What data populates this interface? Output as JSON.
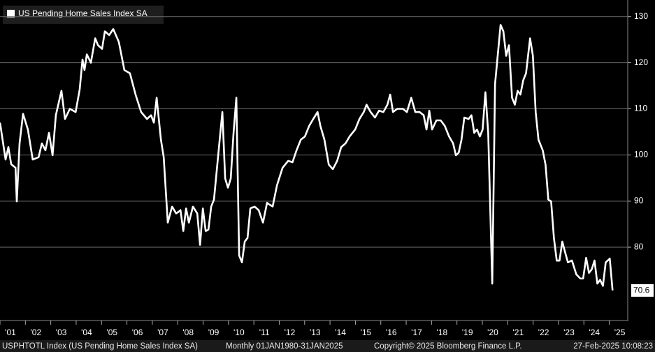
{
  "chart_data": {
    "type": "line",
    "source": "USPHTOTL Index (US Pending Home Sales Index SA)",
    "frequency": "Monthly 01JAN1980-31JAN2025",
    "copyright": "Copyright© 2025 Bloomberg Finance L.P.",
    "timestamp": "27-Feb-2025 10:08:23",
    "x": [
      2001.0,
      2001.22,
      2001.33,
      2001.44,
      2001.61,
      2001.66,
      2001.77,
      2001.91,
      2002.1,
      2002.29,
      2002.52,
      2002.65,
      2002.79,
      2002.93,
      2003.07,
      2003.2,
      2003.42,
      2003.56,
      2003.75,
      2003.98,
      2004.14,
      2004.25,
      2004.33,
      2004.42,
      2004.58,
      2004.75,
      2004.86,
      2005.02,
      2005.13,
      2005.3,
      2005.46,
      2005.68,
      2005.9,
      2006.12,
      2006.34,
      2006.56,
      2006.79,
      2006.95,
      2007.06,
      2007.17,
      2007.34,
      2007.45,
      2007.61,
      2007.78,
      2007.94,
      2008.11,
      2008.22,
      2008.33,
      2008.44,
      2008.6,
      2008.77,
      2008.88,
      2008.99,
      2009.1,
      2009.21,
      2009.32,
      2009.43,
      2009.6,
      2009.76,
      2009.87,
      2009.98,
      2010.09,
      2010.2,
      2010.31,
      2010.42,
      2010.53,
      2010.64,
      2010.75,
      2010.86,
      2011.03,
      2011.19,
      2011.36,
      2011.52,
      2011.74,
      2011.91,
      2012.13,
      2012.35,
      2012.52,
      2012.68,
      2012.85,
      2013.01,
      2013.18,
      2013.34,
      2013.51,
      2013.62,
      2013.78,
      2013.95,
      2014.11,
      2014.28,
      2014.44,
      2014.61,
      2014.77,
      2014.99,
      2015.16,
      2015.33,
      2015.44,
      2015.6,
      2015.77,
      2015.93,
      2016.1,
      2016.26,
      2016.37,
      2016.48,
      2016.65,
      2016.87,
      2017.03,
      2017.2,
      2017.36,
      2017.53,
      2017.69,
      2017.8,
      2017.91,
      2018.02,
      2018.19,
      2018.36,
      2018.52,
      2018.69,
      2018.85,
      2018.96,
      2019.07,
      2019.18,
      2019.29,
      2019.46,
      2019.57,
      2019.68,
      2019.79,
      2019.9,
      2020.01,
      2020.12,
      2020.23,
      2020.39,
      2020.5,
      2020.72,
      2020.83,
      2020.94,
      2021.05,
      2021.17,
      2021.28,
      2021.39,
      2021.5,
      2021.61,
      2021.72,
      2021.88,
      2021.99,
      2022.1,
      2022.21,
      2022.38,
      2022.49,
      2022.6,
      2022.71,
      2022.82,
      2022.93,
      2023.04,
      2023.15,
      2023.26,
      2023.37,
      2023.53,
      2023.7,
      2023.86,
      2023.97,
      2024.09,
      2024.2,
      2024.31,
      2024.42,
      2024.53,
      2024.64,
      2024.75,
      2024.86,
      2025.02,
      2025.13
    ],
    "series": [
      {
        "name": "US Pending Home Sales Index SA",
        "color": "#ffffff",
        "values": [
          107,
          99,
          101.7,
          98,
          97.2,
          89.9,
          102.5,
          108.9,
          105.5,
          99,
          99.5,
          102.5,
          101,
          104.8,
          99.9,
          108.6,
          113.9,
          107.8,
          110,
          109.3,
          114.2,
          120.7,
          118.4,
          121.8,
          120,
          125.3,
          123.8,
          123,
          126.8,
          126,
          127.3,
          124.5,
          118.4,
          117.7,
          113.1,
          109.3,
          107.8,
          108.6,
          107,
          112.4,
          103.3,
          99.5,
          85.3,
          88.8,
          87.3,
          88,
          83.5,
          88.4,
          85.3,
          88.8,
          87.3,
          80.5,
          88.4,
          83.5,
          83.8,
          88.8,
          90.3,
          100.2,
          109.3,
          94.9,
          92.9,
          94.9,
          104.8,
          112.4,
          78.2,
          76.7,
          81.2,
          82,
          88.4,
          88.8,
          88,
          85.3,
          89.6,
          88.8,
          93.4,
          97.2,
          98.7,
          98.4,
          101,
          103.3,
          104,
          106.3,
          107.8,
          109.3,
          106.3,
          103.3,
          97.9,
          96.9,
          98.7,
          101.7,
          102.5,
          104,
          105.5,
          107.8,
          109.3,
          110.9,
          109.3,
          108.1,
          109.6,
          109.3,
          110.9,
          113.1,
          109.3,
          110,
          110,
          109.3,
          112.4,
          109.3,
          109.3,
          108.6,
          105.5,
          109.6,
          105.5,
          107.5,
          107.5,
          106.3,
          104,
          102.5,
          99.9,
          100.5,
          103.3,
          108.1,
          107.8,
          108.6,
          104.8,
          105.5,
          104,
          105.5,
          113.6,
          104.8,
          72.1,
          115.4,
          128.2,
          126.8,
          121.5,
          123.8,
          112.4,
          110.9,
          113.9,
          113.1,
          116.2,
          117.7,
          125.3,
          121.5,
          109.3,
          103.3,
          101,
          97.9,
          90.3,
          89.9,
          82,
          77.1,
          77.1,
          81.2,
          78.9,
          76.7,
          77.1,
          74.1,
          73.2,
          73.2,
          77.7,
          74.4,
          75.2,
          77.1,
          72.1,
          72.9,
          71.6,
          76.7,
          77.5,
          70.6
        ]
      }
    ],
    "xlim": [
      2001,
      2025.7
    ],
    "xticks": [
      {
        "value": 2001,
        "label": "'01"
      },
      {
        "value": 2002,
        "label": "'02"
      },
      {
        "value": 2003,
        "label": "'03"
      },
      {
        "value": 2004,
        "label": "'04"
      },
      {
        "value": 2005,
        "label": "'05"
      },
      {
        "value": 2006,
        "label": "'06"
      },
      {
        "value": 2007,
        "label": "'07"
      },
      {
        "value": 2008,
        "label": "'08"
      },
      {
        "value": 2009,
        "label": "'09"
      },
      {
        "value": 2010,
        "label": "'10"
      },
      {
        "value": 2011,
        "label": "'11"
      },
      {
        "value": 2012,
        "label": "'12"
      },
      {
        "value": 2013,
        "label": "'13"
      },
      {
        "value": 2014,
        "label": "'14"
      },
      {
        "value": 2015,
        "label": "'15"
      },
      {
        "value": 2016,
        "label": "'16"
      },
      {
        "value": 2017,
        "label": "'17"
      },
      {
        "value": 2018,
        "label": "'18"
      },
      {
        "value": 2019,
        "label": "'19"
      },
      {
        "value": 2020,
        "label": "'20"
      },
      {
        "value": 2021,
        "label": "'21"
      },
      {
        "value": 2022,
        "label": "'22"
      },
      {
        "value": 2023,
        "label": "'23"
      },
      {
        "value": 2024,
        "label": "'24"
      },
      {
        "value": 2025,
        "label": "'25"
      }
    ],
    "ylim": [
      65.3,
      133.6
    ],
    "yticks": [
      80,
      90,
      100,
      110,
      120,
      130
    ],
    "y_axis_side": "right",
    "grid": true,
    "legend": "top-left"
  }
}
